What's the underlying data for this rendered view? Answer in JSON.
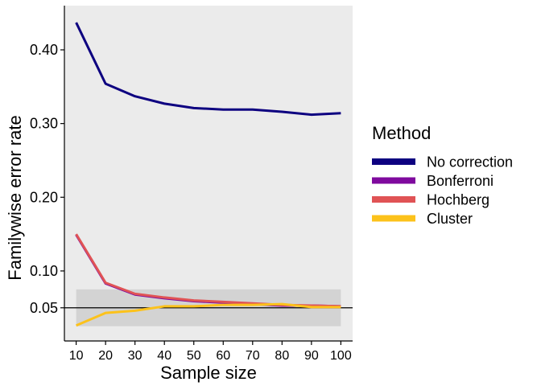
{
  "chart_data": {
    "type": "line",
    "title": "",
    "xlabel": "Sample size",
    "ylabel": "Familywise error rate",
    "x": [
      10,
      20,
      30,
      40,
      50,
      60,
      70,
      80,
      90,
      100
    ],
    "xlim": [
      6,
      104
    ],
    "ylim": [
      0.005,
      0.46
    ],
    "x_ticks": [
      10,
      20,
      30,
      40,
      50,
      60,
      70,
      80,
      90,
      100
    ],
    "x_tick_labels": [
      "10",
      "20",
      "30",
      "40",
      "50",
      "60",
      "70",
      "80",
      "90",
      "100"
    ],
    "y_ticks": [
      0.05,
      0.1,
      0.2,
      0.3,
      0.4
    ],
    "y_tick_labels": [
      "0.05",
      "0.10",
      "0.20",
      "0.30",
      "0.40"
    ],
    "reference_line": 0.05,
    "reference_band": [
      0.025,
      0.075
    ],
    "legend": {
      "title": "Method",
      "position": "right"
    },
    "grid": false,
    "colors": {
      "panel_background": "#ebebeb",
      "band": "#d3d3d3",
      "reference_line": "#000000"
    },
    "series": [
      {
        "name": "No correction",
        "color": "#0d0080",
        "values": [
          0.437,
          0.354,
          0.337,
          0.327,
          0.321,
          0.319,
          0.319,
          0.316,
          0.312,
          0.314
        ]
      },
      {
        "name": "Bonferroni",
        "color": "#7f0a9e",
        "values": [
          0.149,
          0.083,
          0.068,
          0.063,
          0.059,
          0.057,
          0.055,
          0.053,
          0.053,
          0.052
        ]
      },
      {
        "name": "Hochberg",
        "color": "#e05355",
        "values": [
          0.15,
          0.084,
          0.069,
          0.064,
          0.06,
          0.058,
          0.056,
          0.054,
          0.053,
          0.052
        ]
      },
      {
        "name": "Cluster",
        "color": "#fcc21b",
        "values": [
          0.026,
          0.043,
          0.046,
          0.052,
          0.052,
          0.054,
          0.054,
          0.055,
          0.051,
          0.051
        ]
      }
    ]
  }
}
